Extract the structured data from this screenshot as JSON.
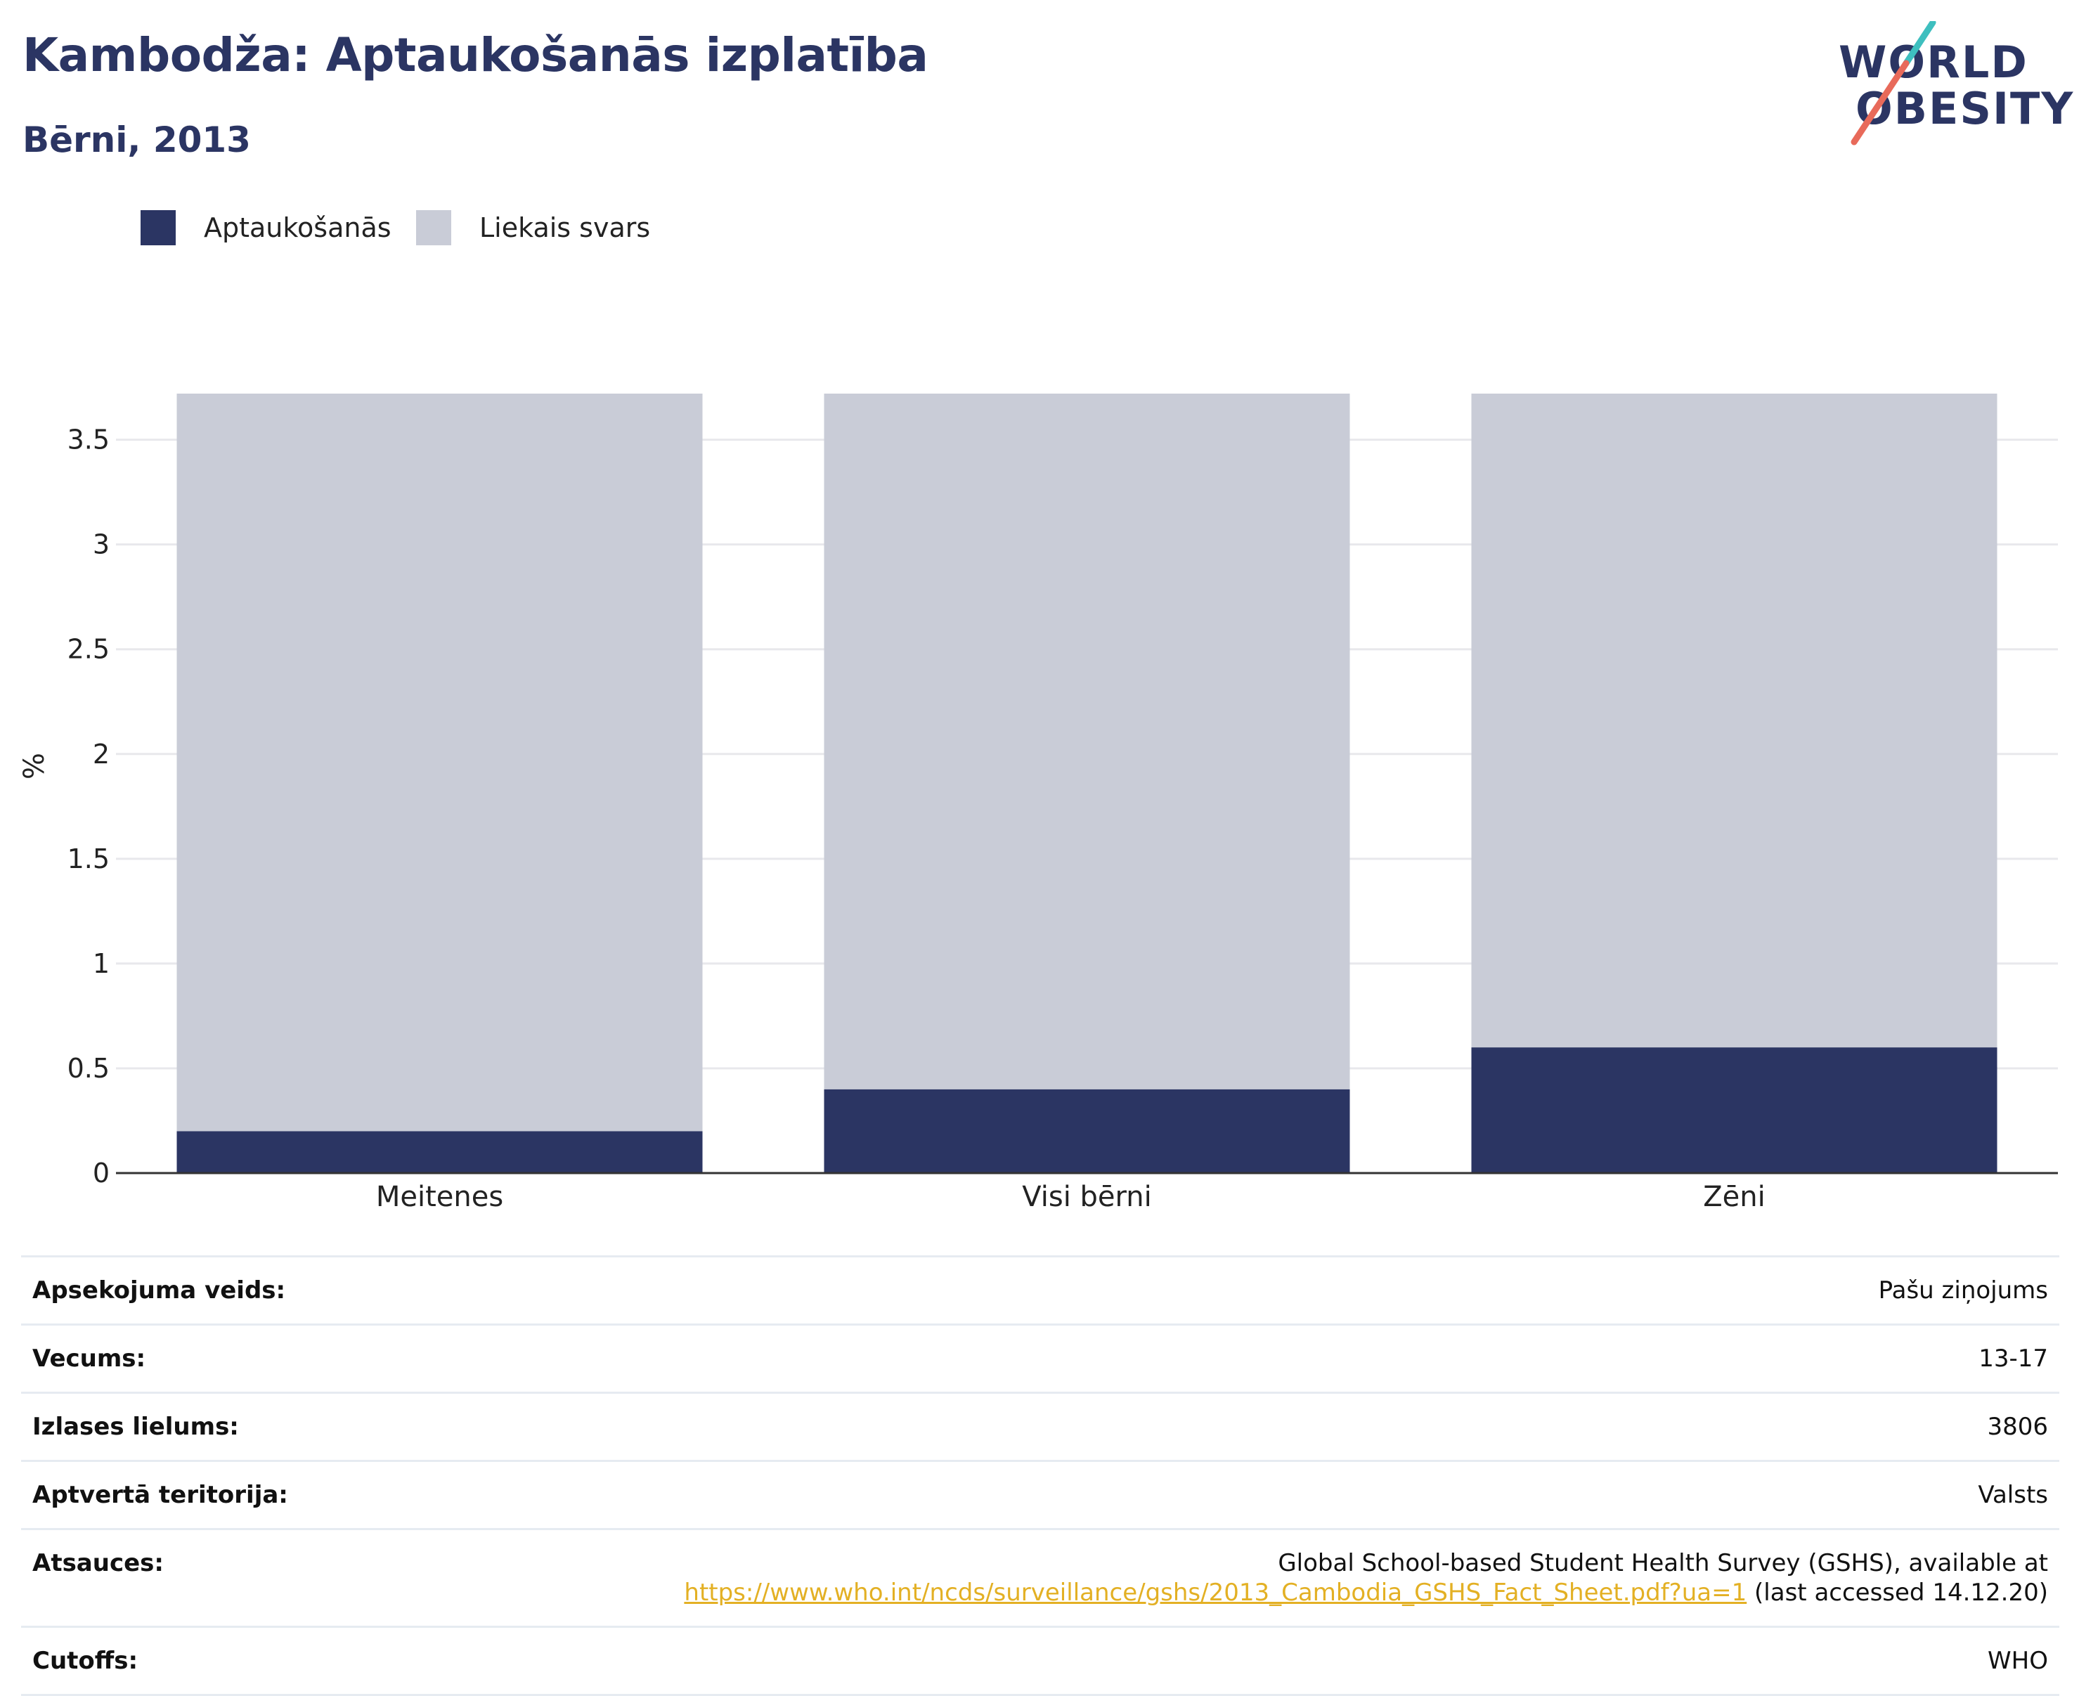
{
  "header": {
    "title": "Kambodža: Aptaukošanās izplatība",
    "subtitle": "Bērni, 2013"
  },
  "logo": {
    "line1": "WORLD",
    "line2": "OBESITY",
    "colors": {
      "text": "#2b3563",
      "slash_top": "#3ebfbf",
      "slash_bottom": "#e86a5a"
    }
  },
  "legend": [
    {
      "label": "Aptaukošanās",
      "color": "#2b3563"
    },
    {
      "label": "Liekais svars",
      "color": "#c9ccd7"
    }
  ],
  "chart_data": {
    "type": "bar",
    "stacked": true,
    "categories": [
      "Meitenes",
      "Visi bērni",
      "Zēni"
    ],
    "series": [
      {
        "name": "Aptaukošanās",
        "values": [
          0.2,
          0.4,
          0.6
        ],
        "color": "#2b3563"
      },
      {
        "name": "Liekais svars",
        "values": [
          3.52,
          3.32,
          3.12
        ],
        "color": "#c9ccd7"
      }
    ],
    "ylabel": "%",
    "xlabel": "",
    "ylim": [
      0,
      3.72
    ],
    "yticks": [
      0,
      0.5,
      1,
      1.5,
      2,
      2.5,
      3,
      3.5
    ],
    "ytick_labels": [
      "0",
      "0.5",
      "1",
      "1.5",
      "2",
      "2.5",
      "3",
      "3.5"
    ],
    "grid": true,
    "legend_position": "top-left"
  },
  "info": {
    "rows": [
      {
        "label": "Apsekojuma veids:",
        "value": "Pašu ziņojums"
      },
      {
        "label": "Vecums:",
        "value": "13-17"
      },
      {
        "label": "Izlases lielums:",
        "value": "3806"
      },
      {
        "label": "Aptvertā teritorija:",
        "value": "Valsts"
      }
    ],
    "source": {
      "label": "Atsauces:",
      "line1": "Global School-based Student Health Survey (GSHS), available at",
      "link": "https://www.who.int/ncds/surveillance/gshs/2013_Cambodia_GSHS_Fact_Sheet.pdf?ua=1",
      "suffix": " (last accessed 14.12.20)"
    },
    "cutoffs": {
      "label": "Cutoffs:",
      "value": "WHO"
    }
  }
}
